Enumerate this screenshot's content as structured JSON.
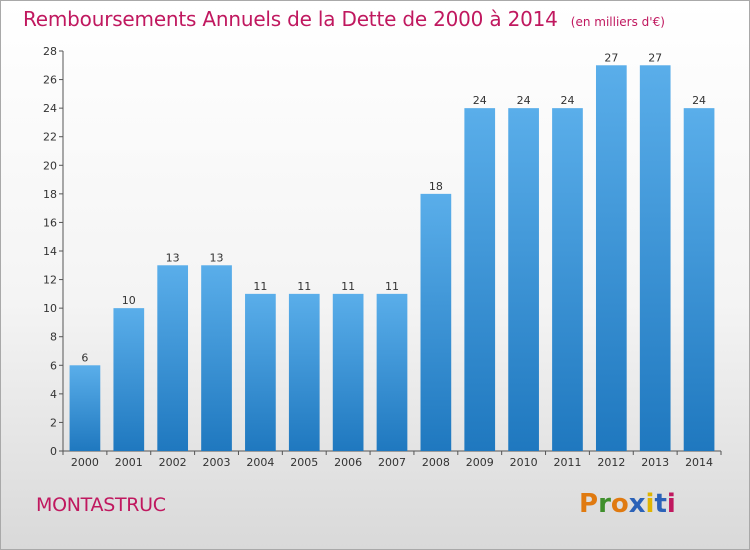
{
  "header": {
    "title": "Remboursements Annuels de la Dette de 2000 à 2014",
    "unit": "(en milliers d'€)"
  },
  "footer": {
    "commune": "MONTASTRUC",
    "brand": "Proxiti"
  },
  "colors": {
    "title": "#c0185f",
    "bar_top": "#5aaeea",
    "bar_bottom": "#1f78bf",
    "brand_letters": [
      "#e07a10",
      "#3f8f2c",
      "#e07a10",
      "#2b62b8",
      "#e0b400",
      "#2b62b8",
      "#c0185f"
    ]
  },
  "chart_data": {
    "type": "bar",
    "title": "Remboursements Annuels de la Dette de 2000 à 2014",
    "xlabel": "",
    "ylabel": "",
    "categories": [
      "2000",
      "2001",
      "2002",
      "2003",
      "2004",
      "2005",
      "2006",
      "2007",
      "2008",
      "2009",
      "2010",
      "2011",
      "2012",
      "2013",
      "2014"
    ],
    "values": [
      6,
      10,
      13,
      13,
      11,
      11,
      11,
      11,
      18,
      24,
      24,
      24,
      27,
      27,
      24
    ],
    "ylim": [
      0,
      28
    ],
    "yticks": [
      0,
      2,
      4,
      6,
      8,
      10,
      12,
      14,
      16,
      18,
      20,
      22,
      24,
      26,
      28
    ],
    "grid": false,
    "legend": "none"
  }
}
